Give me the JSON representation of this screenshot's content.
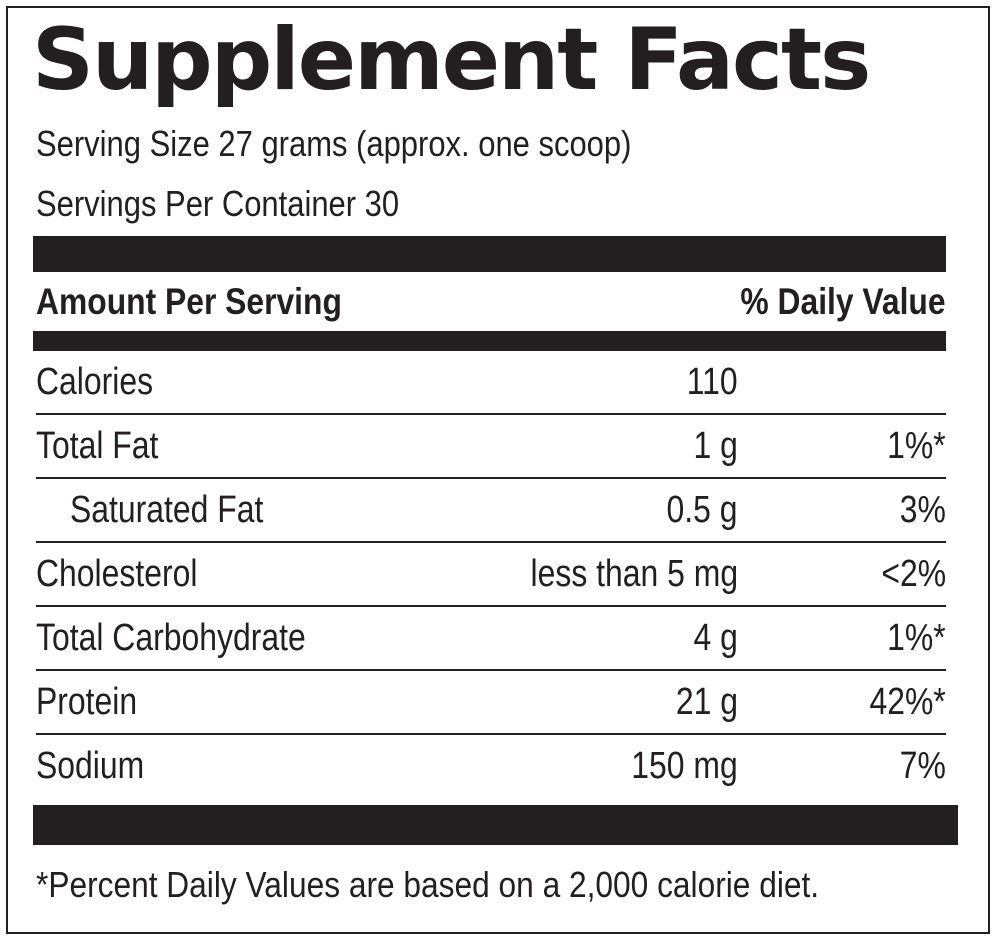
{
  "title": "Supplement Facts",
  "serving_size": "Serving Size 27 grams (approx. one scoop)",
  "servings_per_container": "Servings Per Container 30",
  "header": {
    "amount_per_serving": "Amount Per Serving",
    "daily_value": "% Daily Value"
  },
  "nutrients": [
    {
      "name": "Calories",
      "amount": "110",
      "dv": ""
    },
    {
      "name": "Total Fat",
      "amount": "1 g",
      "dv": "1%*"
    },
    {
      "name": "Saturated Fat",
      "amount": "0.5 g",
      "dv": "3%"
    },
    {
      "name": "Cholesterol",
      "amount": "less than 5 mg",
      "dv": "<2%"
    },
    {
      "name": "Total Carbohydrate",
      "amount": "4 g",
      "dv": "1%*"
    },
    {
      "name": "Protein",
      "amount": "21 g",
      "dv": "42%*"
    },
    {
      "name": "Sodium",
      "amount": "150 mg",
      "dv": "7%"
    }
  ],
  "footnote": "*Percent Daily Values are based on a 2,000 calorie diet."
}
